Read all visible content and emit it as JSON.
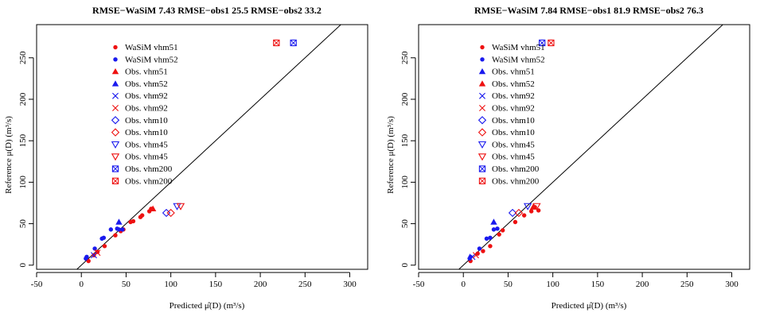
{
  "chart_data": [
    {
      "type": "scatter",
      "title": "RMSE−WaSiM 7.43 RMSE−obs1 25.5 RMSE−obs2 33.2",
      "xlabel": "Predicted μ̂(D)  (m³/s)",
      "ylabel": "Reference μ(D)  (m³/s)",
      "xlim": [
        -50,
        320
      ],
      "ylim": [
        -5,
        290
      ],
      "xticks": [
        -50,
        0,
        50,
        100,
        150,
        200,
        250,
        300
      ],
      "yticks": [
        0,
        50,
        100,
        150,
        200,
        250
      ],
      "reference_line": "1:1",
      "legend_position": "top-left",
      "colors": {
        "red": "#ee1111",
        "blue": "#1a1aee",
        "line": "#000000"
      },
      "series": [
        {
          "name": "WaSiM vhm51",
          "marker": "dot",
          "color": "red",
          "points": [
            [
              8,
              5
            ],
            [
              14,
              12
            ],
            [
              18,
              16
            ],
            [
              26,
              23
            ],
            [
              38,
              36
            ],
            [
              44,
              41
            ],
            [
              47,
              43
            ],
            [
              55,
              52
            ],
            [
              58,
              53
            ],
            [
              66,
              58
            ],
            [
              68,
              60
            ],
            [
              76,
              65
            ],
            [
              78,
              68
            ]
          ]
        },
        {
          "name": "WaSiM vhm52",
          "marker": "dot",
          "color": "blue",
          "points": [
            [
              5,
              8
            ],
            [
              6,
              10
            ],
            [
              15,
              20
            ],
            [
              23,
              32
            ],
            [
              25,
              33
            ],
            [
              33,
              43
            ],
            [
              40,
              44
            ],
            [
              42,
              43
            ],
            [
              46,
              43
            ]
          ]
        },
        {
          "name": "Obs. vhm51",
          "marker": "triangle",
          "color": "red",
          "points": [
            [
              80,
              68
            ]
          ]
        },
        {
          "name": "Obs. vhm52",
          "marker": "triangle",
          "color": "blue",
          "points": [
            [
              42,
              52
            ]
          ]
        },
        {
          "name": "Obs. vhm92",
          "marker": "x",
          "color": "blue",
          "points": [
            [
              14,
              12
            ]
          ]
        },
        {
          "name": "Obs. vhm92",
          "marker": "x",
          "color": "red",
          "points": [
            [
              18,
              15
            ]
          ]
        },
        {
          "name": "Obs. vhm10",
          "marker": "diamond",
          "color": "blue",
          "points": [
            [
              95,
              63
            ]
          ]
        },
        {
          "name": "Obs. vhm10",
          "marker": "diamond",
          "color": "red",
          "points": [
            [
              100,
              63
            ]
          ]
        },
        {
          "name": "Obs. vhm45",
          "marker": "triangle-down",
          "color": "blue",
          "points": [
            [
              107,
              71
            ]
          ]
        },
        {
          "name": "Obs. vhm45",
          "marker": "triangle-down",
          "color": "red",
          "points": [
            [
              111,
              71
            ]
          ]
        },
        {
          "name": "Obs. vhm200",
          "marker": "boxed-x",
          "color": "blue",
          "points": [
            [
              237,
              268
            ]
          ]
        },
        {
          "name": "Obs. vhm200",
          "marker": "boxed-x",
          "color": "red",
          "points": [
            [
              218,
              268
            ]
          ]
        }
      ]
    },
    {
      "type": "scatter",
      "title": "RMSE−WaSiM 7.84 RMSE−obs1 81.9 RMSE−obs2 76.3",
      "xlabel": "Predicted μ̂(D)  (m³/s)",
      "ylabel": "Reference μ(D)  (m³/s)",
      "xlim": [
        -50,
        320
      ],
      "ylim": [
        -5,
        290
      ],
      "xticks": [
        -50,
        0,
        50,
        100,
        150,
        200,
        250,
        300
      ],
      "yticks": [
        0,
        50,
        100,
        150,
        200,
        250
      ],
      "reference_line": "1:1",
      "legend_position": "top-left",
      "colors": {
        "red": "#ee1111",
        "blue": "#1a1aee",
        "line": "#000000"
      },
      "series": [
        {
          "name": "WaSiM vhm51",
          "marker": "dot",
          "color": "red",
          "points": [
            [
              8,
              5
            ],
            [
              16,
              14
            ],
            [
              22,
              17
            ],
            [
              30,
              23
            ],
            [
              40,
              37
            ],
            [
              44,
              42
            ],
            [
              58,
              52
            ],
            [
              68,
              60
            ],
            [
              76,
              65
            ],
            [
              80,
              70
            ],
            [
              84,
              66
            ]
          ]
        },
        {
          "name": "WaSiM vhm52",
          "marker": "dot",
          "color": "blue",
          "points": [
            [
              7,
              8
            ],
            [
              8,
              10
            ],
            [
              18,
              20
            ],
            [
              26,
              32
            ],
            [
              30,
              33
            ],
            [
              34,
              43
            ],
            [
              38,
              44
            ]
          ]
        },
        {
          "name": "Obs. vhm51",
          "marker": "triangle",
          "color": "blue",
          "points": [
            [
              34,
              52
            ]
          ]
        },
        {
          "name": "Obs. vhm52",
          "marker": "triangle",
          "color": "red",
          "points": [
            [
              78,
              70
            ]
          ]
        },
        {
          "name": "Obs. vhm92",
          "marker": "x",
          "color": "blue",
          "points": [
            [
              10,
              10
            ]
          ]
        },
        {
          "name": "Obs. vhm92",
          "marker": "x",
          "color": "red",
          "points": [
            [
              14,
              12
            ]
          ]
        },
        {
          "name": "Obs. vhm10",
          "marker": "diamond",
          "color": "blue",
          "points": [
            [
              55,
              63
            ]
          ]
        },
        {
          "name": "Obs. vhm10",
          "marker": "diamond",
          "color": "red",
          "points": [
            [
              62,
              63
            ]
          ]
        },
        {
          "name": "Obs. vhm45",
          "marker": "triangle-down",
          "color": "blue",
          "points": [
            [
              72,
              71
            ]
          ]
        },
        {
          "name": "Obs. vhm45",
          "marker": "triangle-down",
          "color": "red",
          "points": [
            [
              82,
              71
            ]
          ]
        },
        {
          "name": "Obs. vhm200",
          "marker": "boxed-x",
          "color": "blue",
          "points": [
            [
              88,
              268
            ]
          ]
        },
        {
          "name": "Obs. vhm200",
          "marker": "boxed-x",
          "color": "red",
          "points": [
            [
              98,
              268
            ]
          ]
        }
      ]
    }
  ]
}
